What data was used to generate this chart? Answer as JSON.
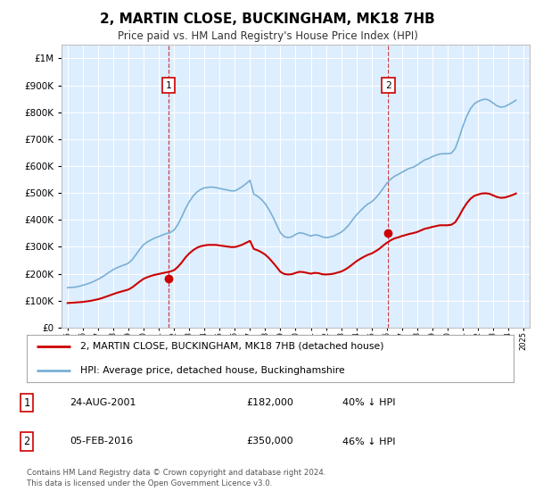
{
  "title": "2, MARTIN CLOSE, BUCKINGHAM, MK18 7HB",
  "subtitle": "Price paid vs. HM Land Registry's House Price Index (HPI)",
  "bg_color": "#ffffff",
  "plot_bg_color": "#ddeeff",
  "grid_color": "#ffffff",
  "hpi_color": "#7ab0d4",
  "price_color": "#cc0000",
  "marker_color": "#cc0000",
  "vline_color": "#cc2222",
  "ylim": [
    0,
    1050000
  ],
  "yticks": [
    0,
    100000,
    200000,
    300000,
    400000,
    500000,
    600000,
    700000,
    800000,
    900000,
    1000000
  ],
  "ytick_labels": [
    "£0",
    "£100K",
    "£200K",
    "£300K",
    "£400K",
    "£500K",
    "£600K",
    "£700K",
    "£800K",
    "£900K",
    "£1M"
  ],
  "transaction1_year": 2001.65,
  "transaction1_price": 182000,
  "transaction1_label": "1",
  "transaction1_date": "24-AUG-2001",
  "transaction1_price_str": "£182,000",
  "transaction1_hpi_pct": "40% ↓ HPI",
  "transaction2_year": 2016.09,
  "transaction2_price": 350000,
  "transaction2_label": "2",
  "transaction2_date": "05-FEB-2016",
  "transaction2_price_str": "£350,000",
  "transaction2_hpi_pct": "46% ↓ HPI",
  "legend_line1": "2, MARTIN CLOSE, BUCKINGHAM, MK18 7HB (detached house)",
  "legend_line2": "HPI: Average price, detached house, Buckinghamshire",
  "footer": "Contains HM Land Registry data © Crown copyright and database right 2024.\nThis data is licensed under the Open Government Licence v3.0.",
  "hpi_data_years": [
    1995.0,
    1995.25,
    1995.5,
    1995.75,
    1996.0,
    1996.25,
    1996.5,
    1996.75,
    1997.0,
    1997.25,
    1997.5,
    1997.75,
    1998.0,
    1998.25,
    1998.5,
    1998.75,
    1999.0,
    1999.25,
    1999.5,
    1999.75,
    2000.0,
    2000.25,
    2000.5,
    2000.75,
    2001.0,
    2001.25,
    2001.5,
    2001.75,
    2002.0,
    2002.25,
    2002.5,
    2002.75,
    2003.0,
    2003.25,
    2003.5,
    2003.75,
    2004.0,
    2004.25,
    2004.5,
    2004.75,
    2005.0,
    2005.25,
    2005.5,
    2005.75,
    2006.0,
    2006.25,
    2006.5,
    2006.75,
    2007.0,
    2007.25,
    2007.5,
    2007.75,
    2008.0,
    2008.25,
    2008.5,
    2008.75,
    2009.0,
    2009.25,
    2009.5,
    2009.75,
    2010.0,
    2010.25,
    2010.5,
    2010.75,
    2011.0,
    2011.25,
    2011.5,
    2011.75,
    2012.0,
    2012.25,
    2012.5,
    2012.75,
    2013.0,
    2013.25,
    2013.5,
    2013.75,
    2014.0,
    2014.25,
    2014.5,
    2014.75,
    2015.0,
    2015.25,
    2015.5,
    2015.75,
    2016.0,
    2016.25,
    2016.5,
    2016.75,
    2017.0,
    2017.25,
    2017.5,
    2017.75,
    2018.0,
    2018.25,
    2018.5,
    2018.75,
    2019.0,
    2019.25,
    2019.5,
    2019.75,
    2020.0,
    2020.25,
    2020.5,
    2020.75,
    2021.0,
    2021.25,
    2021.5,
    2021.75,
    2022.0,
    2022.25,
    2022.5,
    2022.75,
    2023.0,
    2023.25,
    2023.5,
    2023.75,
    2024.0,
    2024.25,
    2024.5
  ],
  "hpi_data_values": [
    148000,
    149000,
    150000,
    153000,
    157000,
    161000,
    166000,
    172000,
    179000,
    187000,
    196000,
    206000,
    215000,
    222000,
    228000,
    233000,
    239000,
    252000,
    271000,
    291000,
    308000,
    318000,
    326000,
    333000,
    338000,
    344000,
    349000,
    353000,
    362000,
    382000,
    410000,
    441000,
    467000,
    488000,
    503000,
    513000,
    519000,
    521000,
    522000,
    520000,
    517000,
    514000,
    511000,
    508000,
    508000,
    515000,
    524000,
    535000,
    547000,
    496000,
    488000,
    476000,
    460000,
    438000,
    412000,
    382000,
    352000,
    338000,
    334000,
    337000,
    346000,
    352000,
    350000,
    345000,
    340000,
    344000,
    343000,
    337000,
    334000,
    336000,
    340000,
    347000,
    354000,
    366000,
    381000,
    400000,
    418000,
    433000,
    447000,
    459000,
    467000,
    480000,
    497000,
    516000,
    536000,
    551000,
    562000,
    569000,
    577000,
    585000,
    592000,
    596000,
    604000,
    614000,
    623000,
    628000,
    635000,
    641000,
    645000,
    646000,
    646000,
    648000,
    665000,
    703000,
    747000,
    784000,
    813000,
    831000,
    840000,
    846000,
    849000,
    844000,
    834000,
    824000,
    819000,
    821000,
    828000,
    836000,
    845000
  ],
  "price_data_years": [
    1995.0,
    1995.25,
    1995.5,
    1995.75,
    1996.0,
    1996.25,
    1996.5,
    1996.75,
    1997.0,
    1997.25,
    1997.5,
    1997.75,
    1998.0,
    1998.25,
    1998.5,
    1998.75,
    1999.0,
    1999.25,
    1999.5,
    1999.75,
    2000.0,
    2000.25,
    2000.5,
    2000.75,
    2001.0,
    2001.25,
    2001.5,
    2001.75,
    2002.0,
    2002.25,
    2002.5,
    2002.75,
    2003.0,
    2003.25,
    2003.5,
    2003.75,
    2004.0,
    2004.25,
    2004.5,
    2004.75,
    2005.0,
    2005.25,
    2005.5,
    2005.75,
    2006.0,
    2006.25,
    2006.5,
    2006.75,
    2007.0,
    2007.25,
    2007.5,
    2007.75,
    2008.0,
    2008.25,
    2008.5,
    2008.75,
    2009.0,
    2009.25,
    2009.5,
    2009.75,
    2010.0,
    2010.25,
    2010.5,
    2010.75,
    2011.0,
    2011.25,
    2011.5,
    2011.75,
    2012.0,
    2012.25,
    2012.5,
    2012.75,
    2013.0,
    2013.25,
    2013.5,
    2013.75,
    2014.0,
    2014.25,
    2014.5,
    2014.75,
    2015.0,
    2015.25,
    2015.5,
    2015.75,
    2016.0,
    2016.25,
    2016.5,
    2016.75,
    2017.0,
    2017.25,
    2017.5,
    2017.75,
    2018.0,
    2018.25,
    2018.5,
    2018.75,
    2019.0,
    2019.25,
    2019.5,
    2019.75,
    2020.0,
    2020.25,
    2020.5,
    2020.75,
    2021.0,
    2021.25,
    2021.5,
    2021.75,
    2022.0,
    2022.25,
    2022.5,
    2022.75,
    2023.0,
    2023.25,
    2023.5,
    2023.75,
    2024.0,
    2024.25,
    2024.5
  ],
  "price_data_values": [
    91000,
    92000,
    93000,
    94000,
    95000,
    97000,
    99000,
    102000,
    105000,
    109000,
    114000,
    119000,
    124000,
    129000,
    133000,
    137000,
    141000,
    149000,
    160000,
    171000,
    181000,
    187000,
    192000,
    196000,
    199000,
    202000,
    205000,
    208000,
    213000,
    225000,
    241000,
    260000,
    275000,
    287000,
    296000,
    302000,
    305000,
    307000,
    307000,
    307000,
    305000,
    303000,
    301000,
    299000,
    299000,
    303000,
    308000,
    315000,
    322000,
    292000,
    287000,
    280000,
    271000,
    258000,
    242000,
    225000,
    207000,
    199000,
    197000,
    198000,
    203000,
    207000,
    206000,
    203000,
    200000,
    203000,
    202000,
    198000,
    197000,
    198000,
    200000,
    204000,
    208000,
    215000,
    224000,
    235000,
    246000,
    255000,
    263000,
    270000,
    275000,
    283000,
    292000,
    304000,
    315000,
    324000,
    331000,
    335000,
    340000,
    344000,
    348000,
    351000,
    355000,
    361000,
    367000,
    370000,
    374000,
    377000,
    380000,
    380000,
    380000,
    382000,
    391000,
    413000,
    439000,
    461000,
    478000,
    489000,
    494000,
    498000,
    499000,
    497000,
    491000,
    485000,
    482000,
    483000,
    487000,
    492000,
    498000
  ]
}
